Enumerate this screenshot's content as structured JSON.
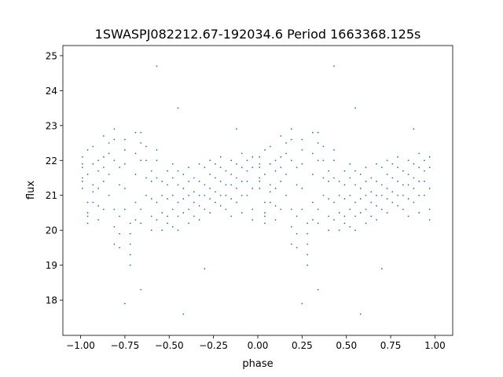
{
  "chart_data": {
    "type": "scatter",
    "title": "1SWASPJ082212.67-192034.6 Period 1663368.125s",
    "xlabel": "phase",
    "ylabel": "flux",
    "xlim": [
      -1.1,
      1.1
    ],
    "ylim": [
      16.99,
      25.29
    ],
    "xticks": [
      -1.0,
      -0.75,
      -0.5,
      -0.25,
      0.0,
      0.25,
      0.5,
      0.75,
      1.0
    ],
    "xtick_labels": [
      "−1.00",
      "−0.75",
      "−0.50",
      "−0.25",
      "0.00",
      "0.25",
      "0.50",
      "0.75",
      "1.00"
    ],
    "yticks": [
      18,
      19,
      20,
      21,
      22,
      23,
      24,
      25
    ],
    "ytick_labels": [
      "18",
      "19",
      "20",
      "21",
      "22",
      "23",
      "24",
      "25"
    ],
    "grid": false,
    "marker_color": "#1f77b4",
    "phase_folded_twice": true,
    "streaks": [
      {
        "phase": -0.99,
        "flux": [
          21.2,
          21.5,
          21.8,
          22.1,
          21.4,
          21.9
        ]
      },
      {
        "phase": -0.96,
        "flux": [
          20.2,
          20.5,
          20.8,
          21.6,
          22.3,
          20.4
        ]
      },
      {
        "phase": -0.93,
        "flux": [
          20.8,
          21.3,
          21.9,
          22.4,
          21.1
        ]
      },
      {
        "phase": -0.9,
        "flux": [
          20.3,
          20.7,
          21.2,
          21.7,
          22.0
        ]
      },
      {
        "phase": -0.87,
        "flux": [
          20.6,
          21.4,
          22.1,
          22.7,
          21.8
        ]
      },
      {
        "phase": -0.84,
        "flux": [
          21.0,
          21.6,
          22.2,
          22.5
        ]
      },
      {
        "phase": -0.81,
        "flux": [
          19.6,
          20.1,
          20.6,
          22.0,
          22.6,
          22.9
        ]
      },
      {
        "phase": -0.78,
        "flux": [
          19.5,
          19.9,
          20.4,
          21.3,
          21.8
        ]
      },
      {
        "phase": -0.75,
        "flux": [
          20.6,
          21.2,
          21.9,
          22.3,
          22.6,
          17.9
        ]
      },
      {
        "phase": -0.72,
        "flux": [
          19.0,
          19.3,
          19.6,
          19.9,
          20.2
        ]
      },
      {
        "phase": -0.69,
        "flux": [
          20.3,
          20.8,
          21.6,
          22.2,
          22.8
        ]
      },
      {
        "phase": -0.66,
        "flux": [
          20.2,
          20.6,
          22.0,
          22.5,
          22.8,
          18.3
        ]
      },
      {
        "phase": -0.63,
        "flux": [
          21.0,
          21.5,
          22.0,
          22.4
        ]
      },
      {
        "phase": -0.6,
        "flux": [
          20.0,
          20.4,
          20.9,
          21.4,
          21.7
        ]
      },
      {
        "phase": -0.57,
        "flux": [
          20.3,
          20.8,
          21.5,
          22.0,
          22.3,
          24.7
        ]
      },
      {
        "phase": -0.54,
        "flux": [
          20.0,
          20.5,
          21.0,
          21.4
        ]
      },
      {
        "phase": -0.51,
        "flux": [
          20.4,
          20.9,
          21.3,
          21.7,
          20.2
        ]
      },
      {
        "phase": -0.48,
        "flux": [
          20.1,
          20.6,
          21.0,
          21.5,
          21.9
        ]
      },
      {
        "phase": -0.45,
        "flux": [
          20.0,
          20.4,
          20.8,
          21.3,
          21.7,
          23.5
        ]
      },
      {
        "phase": -0.42,
        "flux": [
          20.5,
          20.9,
          21.2,
          21.6,
          17.6
        ]
      },
      {
        "phase": -0.39,
        "flux": [
          20.2,
          20.6,
          21.0,
          21.4,
          21.8
        ]
      },
      {
        "phase": -0.36,
        "flux": [
          20.4,
          20.8,
          21.1,
          21.5
        ]
      },
      {
        "phase": -0.33,
        "flux": [
          20.3,
          20.7,
          21.0,
          21.4,
          21.9
        ]
      },
      {
        "phase": -0.3,
        "flux": [
          20.6,
          21.0,
          21.3,
          21.8,
          18.9
        ]
      },
      {
        "phase": -0.27,
        "flux": [
          20.5,
          20.9,
          21.2,
          21.6,
          22.0
        ]
      },
      {
        "phase": -0.24,
        "flux": [
          20.8,
          21.1,
          21.5,
          21.9
        ]
      },
      {
        "phase": -0.21,
        "flux": [
          20.7,
          21.0,
          21.4,
          21.8,
          22.1
        ]
      },
      {
        "phase": -0.18,
        "flux": [
          20.6,
          21.0,
          21.3,
          21.7
        ]
      },
      {
        "phase": -0.15,
        "flux": [
          20.4,
          20.9,
          21.3,
          21.6,
          22.0
        ]
      },
      {
        "phase": -0.12,
        "flux": [
          20.8,
          21.2,
          21.5,
          21.9,
          22.9
        ]
      },
      {
        "phase": -0.09,
        "flux": [
          20.5,
          21.0,
          21.4,
          21.8,
          22.2
        ]
      },
      {
        "phase": -0.06,
        "flux": [
          21.0,
          21.4,
          21.7,
          22.0
        ]
      },
      {
        "phase": -0.03,
        "flux": [
          20.3,
          20.6,
          21.2,
          21.8,
          22.1
        ]
      }
    ]
  }
}
